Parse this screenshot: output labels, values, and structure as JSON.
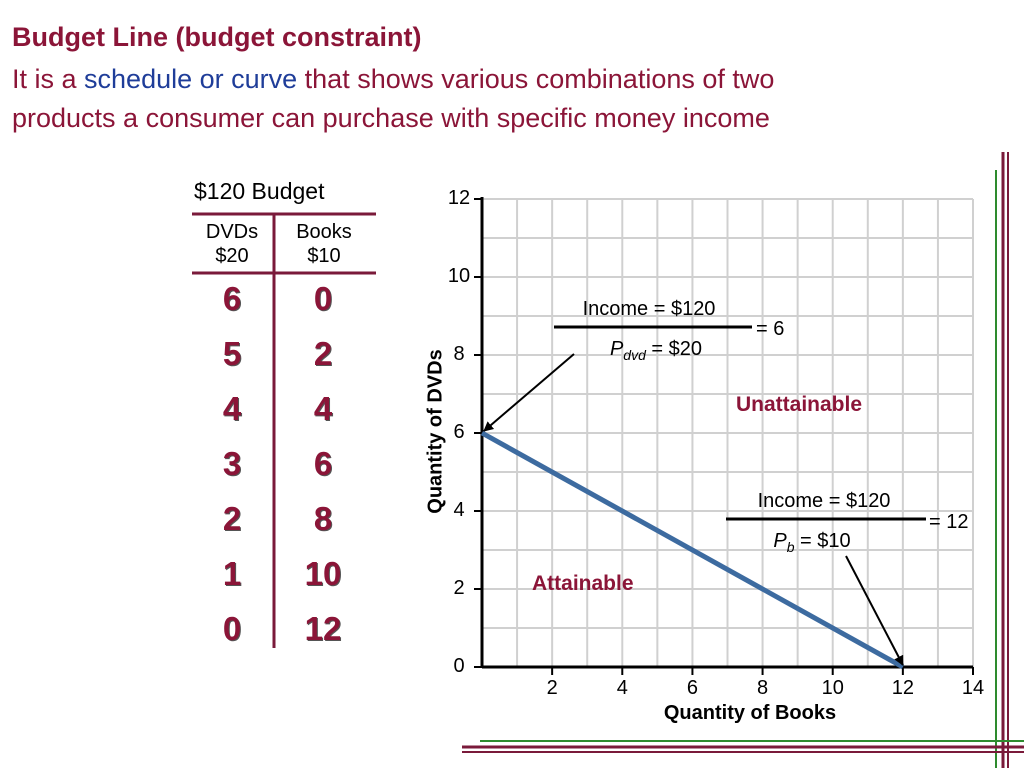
{
  "title": "Budget Line (budget constraint)",
  "subtitle": {
    "pre": "It is a ",
    "highlight": "schedule or curve",
    "post": " that shows various combinations of two",
    "line2": "products a consumer can purchase with specific money income"
  },
  "table": {
    "title": "$120 Budget",
    "col1_name": "DVDs",
    "col1_price": "$20",
    "col2_name": "Books",
    "col2_price": "$10",
    "dvds": [
      "6",
      "5",
      "4",
      "3",
      "2",
      "1",
      "0"
    ],
    "books": [
      "0",
      "2",
      "4",
      "6",
      "8",
      "10",
      "12"
    ]
  },
  "chart_data": {
    "type": "line",
    "xlabel": "Quantity of Books",
    "ylabel": "Quantity of DVDs",
    "xlim": [
      0,
      14
    ],
    "ylim": [
      0,
      12
    ],
    "x_ticks": [
      "2",
      "4",
      "6",
      "8",
      "10",
      "12",
      "14"
    ],
    "y_ticks": [
      "0",
      "2",
      "4",
      "6",
      "8",
      "10",
      "12"
    ],
    "grid": true,
    "series": [
      {
        "x": [
          0,
          12
        ],
        "y": [
          6,
          0
        ],
        "color": "#3d6ba0"
      }
    ],
    "annotations": {
      "dvd_income": "Income = $120",
      "dvd_price_symbol": "P",
      "dvd_price_sub": "dvd",
      "dvd_price_value": " = $20",
      "dvd_result": "= 6",
      "book_income": "Income = $120",
      "book_price_symbol": "P",
      "book_price_sub": "b",
      "book_price_value": " = $10",
      "book_result": "= 12",
      "unattainable": "Unattainable",
      "attainable": "Attainable"
    }
  },
  "colors": {
    "accent": "#8b1538",
    "highlight": "#1f3d99",
    "line": "#3d6ba0",
    "border_green": "#2e8b2e"
  }
}
